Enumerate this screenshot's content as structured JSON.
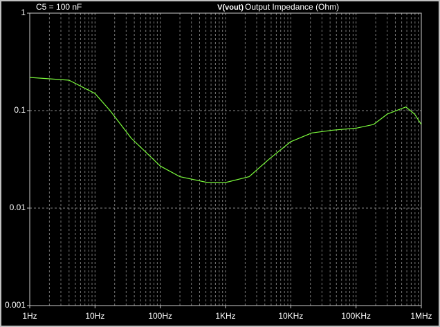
{
  "chart_data": {
    "type": "line",
    "annotation": "C5 = 100 nF",
    "ylabel": "Output Impedance (Ohm)",
    "log_x": true,
    "log_y": true,
    "grid": true,
    "minor_grid_x": true,
    "x": [
      1,
      4,
      10,
      17,
      36,
      100,
      200,
      530,
      1000,
      2300,
      4700,
      10000,
      21000,
      44000,
      100000,
      185000,
      300000,
      580000,
      790000,
      1000000
    ],
    "series": [
      {
        "name": "V(vout)",
        "color": "#7cfc3c",
        "values": [
          0.219,
          0.205,
          0.15,
          0.1,
          0.052,
          0.027,
          0.021,
          0.0183,
          0.0183,
          0.021,
          0.032,
          0.048,
          0.059,
          0.063,
          0.066,
          0.072,
          0.092,
          0.109,
          0.092,
          0.072
        ]
      }
    ],
    "xlim": [
      1,
      1000000
    ],
    "xticks": [
      {
        "value": 1,
        "label": "1Hz"
      },
      {
        "value": 10,
        "label": "10Hz"
      },
      {
        "value": 100,
        "label": "100Hz"
      },
      {
        "value": 1000,
        "label": "1KHz"
      },
      {
        "value": 10000,
        "label": "10KHz"
      },
      {
        "value": 100000,
        "label": "100KHz"
      },
      {
        "value": 1000000,
        "label": "1MHz"
      }
    ],
    "ylim": [
      0.001,
      1
    ],
    "yticks": [
      0.001,
      0.01,
      0.1,
      1
    ]
  }
}
